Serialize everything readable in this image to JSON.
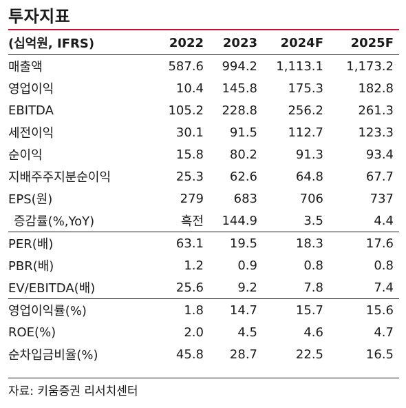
{
  "title": "투자지표",
  "header": {
    "unit": "(십억원, IFRS)",
    "years": [
      "2022",
      "2023",
      "2024F",
      "2025F"
    ]
  },
  "rows": [
    {
      "label": "매출액",
      "values": [
        "587.6",
        "994.2",
        "1,113.1",
        "1,173.2"
      ]
    },
    {
      "label": "영업이익",
      "values": [
        "10.4",
        "145.8",
        "175.3",
        "182.8"
      ]
    },
    {
      "label": "EBITDA",
      "values": [
        "105.2",
        "228.8",
        "256.2",
        "261.3"
      ]
    },
    {
      "label": "세전이익",
      "values": [
        "30.1",
        "91.5",
        "112.7",
        "123.3"
      ]
    },
    {
      "label": "순이익",
      "values": [
        "15.8",
        "80.2",
        "91.3",
        "93.4"
      ]
    },
    {
      "label": "지배주주지분순이익",
      "values": [
        "25.3",
        "62.6",
        "64.8",
        "67.7"
      ]
    },
    {
      "label": "EPS(원)",
      "values": [
        "279",
        "683",
        "706",
        "737"
      ]
    },
    {
      "label": "증감률(%,YoY)",
      "values": [
        "흑전",
        "144.9",
        "3.5",
        "4.4"
      ]
    },
    {
      "label": "PER(배)",
      "values": [
        "63.1",
        "19.5",
        "18.3",
        "17.6"
      ]
    },
    {
      "label": "PBR(배)",
      "values": [
        "1.2",
        "0.9",
        "0.8",
        "0.8"
      ]
    },
    {
      "label": "EV/EBITDA(배)",
      "values": [
        "25.6",
        "9.2",
        "7.8",
        "7.4"
      ]
    },
    {
      "label": "영업이익률(%)",
      "values": [
        "1.8",
        "14.7",
        "15.7",
        "15.6"
      ]
    },
    {
      "label": "ROE(%)",
      "values": [
        "2.0",
        "4.5",
        "4.6",
        "4.7"
      ]
    },
    {
      "label": "순차입금비율(%)",
      "values": [
        "45.8",
        "28.7",
        "22.5",
        "16.5"
      ]
    }
  ],
  "source": "자료: 키움증권 리서치센터"
}
